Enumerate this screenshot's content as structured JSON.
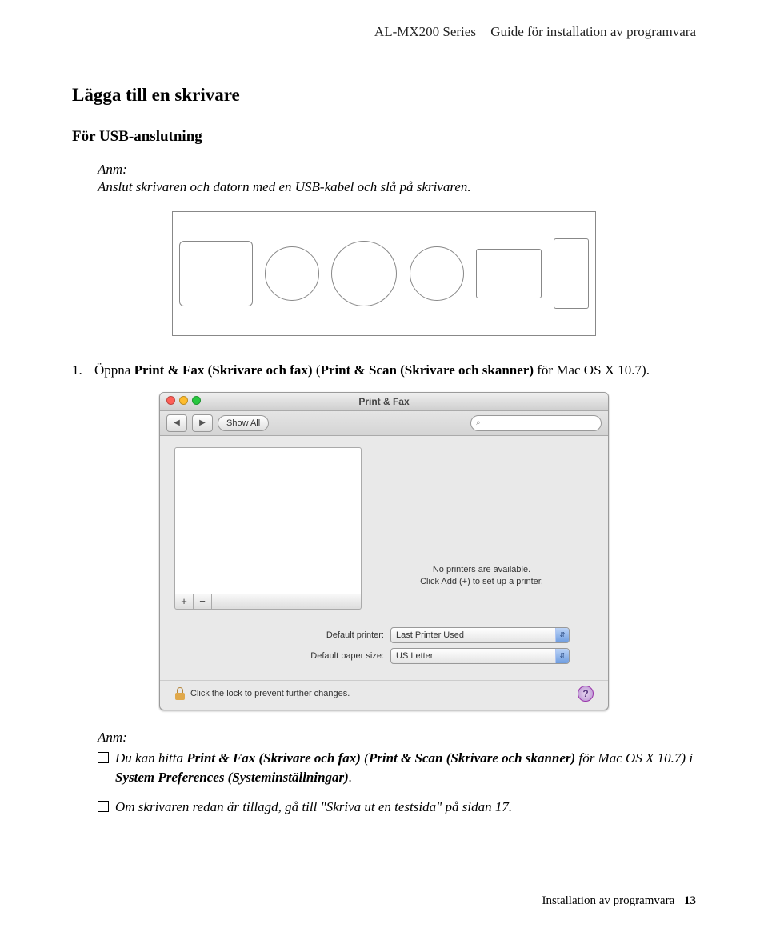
{
  "header": {
    "product": "AL-MX200 Series",
    "guide": "Guide för installation av programvara"
  },
  "section_title": "Lägga till en skrivare",
  "sub_title": "För USB-anslutning",
  "note1": {
    "label": "Anm:",
    "text": "Anslut skrivaren och datorn med en USB-kabel och slå på skrivaren."
  },
  "step1": {
    "number": "1.",
    "pre": "Öppna ",
    "bold1": "Print & Fax (Skrivare och fax)",
    "mid": " (",
    "bold2": "Print & Scan (Skrivare och skanner)",
    "post": " för Mac OS X 10.7)."
  },
  "prefs": {
    "title": "Print & Fax",
    "show_all": "Show All",
    "search_icon": "⌕",
    "empty1": "No printers are available.",
    "empty2": "Click Add (+) to set up a printer.",
    "add": "+",
    "remove": "−",
    "default_printer_label": "Default printer:",
    "default_printer_value": "Last Printer Used",
    "default_paper_label": "Default paper size:",
    "default_paper_value": "US Letter",
    "lock_text": "Click the lock to prevent further changes.",
    "help": "?"
  },
  "note2": {
    "label": "Anm:",
    "bullet1_a": "Du kan hitta ",
    "bullet1_b1": "Print & Fax (Skrivare och fax)",
    "bullet1_c": " (",
    "bullet1_b2": "Print & Scan (Skrivare och skanner)",
    "bullet1_d": " för Mac OS X 10.7) i ",
    "bullet1_b3": "System Preferences (Systeminställningar)",
    "bullet1_e": ".",
    "bullet2": "Om skrivaren redan är tillagd, gå till \"Skriva ut en testsida\" på sidan 17."
  },
  "footer": {
    "text": "Installation av programvara",
    "page": "13"
  }
}
